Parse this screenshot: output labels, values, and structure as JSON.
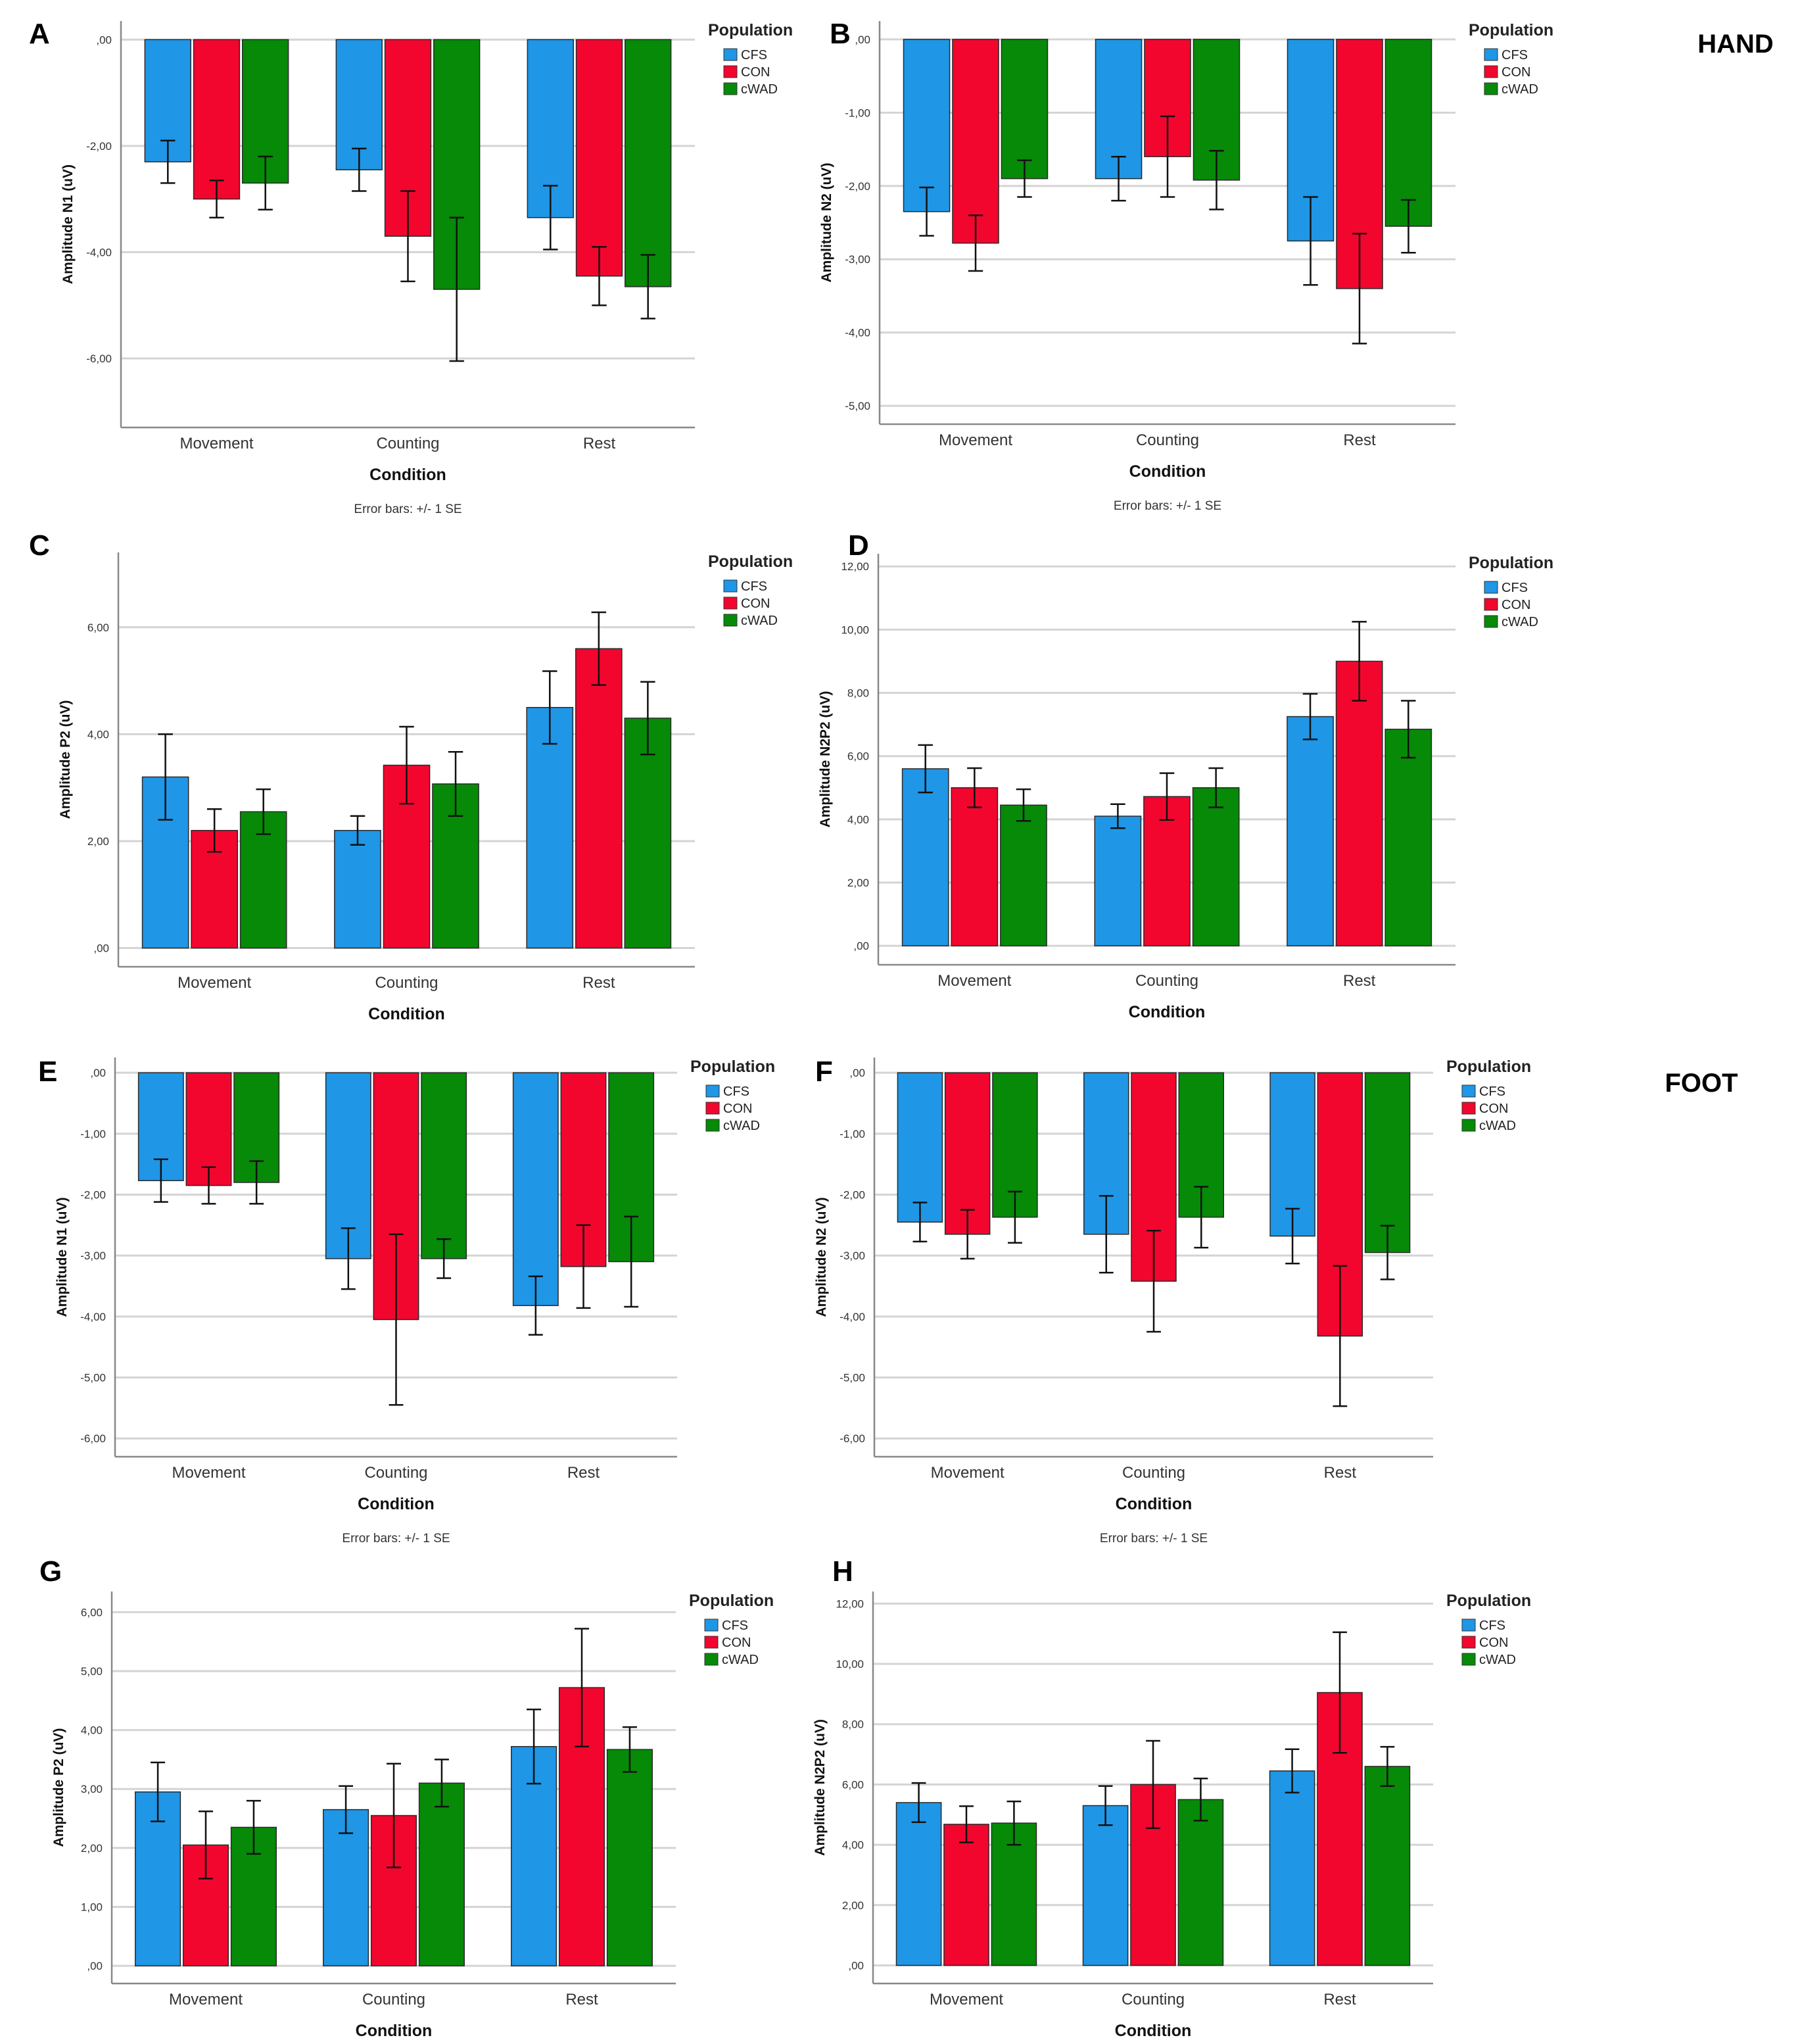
{
  "sections": {
    "hand": "HAND",
    "foot": "FOOT"
  },
  "colors": {
    "CFS": "#1f96e6",
    "CON": "#f2062e",
    "cWAD": "#068a08"
  },
  "chart_data": [
    {
      "id": "A",
      "panel_label": "A",
      "type": "bar",
      "ylabel": "Amplitude N1 (uV)",
      "xlabel": "Condition",
      "categories": [
        "Movement",
        "Counting",
        "Rest"
      ],
      "ylim": [
        -7.3,
        0.35
      ],
      "ticks": [
        ",00",
        "-2,00",
        "-4,00",
        "-6,00"
      ],
      "tick_values": [
        0,
        -2,
        -4,
        -6
      ],
      "legend_title": "Population",
      "series": [
        {
          "name": "CFS",
          "values": [
            -2.3,
            -2.45,
            -3.35
          ],
          "se": [
            0.4,
            0.4,
            0.6
          ]
        },
        {
          "name": "CON",
          "values": [
            -3.0,
            -3.7,
            -4.45
          ],
          "se": [
            0.35,
            0.85,
            0.55
          ]
        },
        {
          "name": "cWAD",
          "values": [
            -2.7,
            -4.7,
            -4.65
          ],
          "se": [
            0.5,
            1.35,
            0.6
          ]
        }
      ],
      "footnote": "Error bars: +/- 1 SE"
    },
    {
      "id": "B",
      "panel_label": "B",
      "type": "bar",
      "ylabel": "Amplitude N2 (uV)",
      "xlabel": "Condition",
      "categories": [
        "Movement",
        "Counting",
        "Rest"
      ],
      "ylim": [
        -5.25,
        0.25
      ],
      "ticks": [
        ",00",
        "-1,00",
        "-2,00",
        "-3,00",
        "-4,00",
        "-5,00"
      ],
      "tick_values": [
        0,
        -1,
        -2,
        -3,
        -4,
        -5
      ],
      "legend_title": "Population",
      "series": [
        {
          "name": "CFS",
          "values": [
            -2.35,
            -1.9,
            -2.75
          ],
          "se": [
            0.33,
            0.3,
            0.6
          ]
        },
        {
          "name": "CON",
          "values": [
            -2.78,
            -1.6,
            -3.4
          ],
          "se": [
            0.38,
            0.55,
            0.75
          ]
        },
        {
          "name": "cWAD",
          "values": [
            -1.9,
            -1.92,
            -2.55
          ],
          "se": [
            0.25,
            0.4,
            0.36
          ]
        }
      ],
      "footnote": "Error bars: +/- 1 SE"
    },
    {
      "id": "C",
      "panel_label": "C",
      "type": "bar",
      "ylabel": "Amplitude P2 (uV)",
      "xlabel": "Condition",
      "categories": [
        "Movement",
        "Counting",
        "Rest"
      ],
      "ylim": [
        -0.35,
        7.4
      ],
      "ticks": [
        ",00",
        "2,00",
        "4,00",
        "6,00"
      ],
      "tick_values": [
        0,
        2,
        4,
        6
      ],
      "legend_title": "Population",
      "series": [
        {
          "name": "CFS",
          "values": [
            3.2,
            2.2,
            4.5
          ],
          "se": [
            0.8,
            0.27,
            0.68
          ]
        },
        {
          "name": "CON",
          "values": [
            2.2,
            3.42,
            5.6
          ],
          "se": [
            0.4,
            0.72,
            0.68
          ]
        },
        {
          "name": "cWAD",
          "values": [
            2.55,
            3.07,
            4.3
          ],
          "se": [
            0.42,
            0.6,
            0.68
          ]
        }
      ],
      "footnote": ""
    },
    {
      "id": "D",
      "panel_label": "D",
      "type": "bar",
      "ylabel": "Amplitude N2P2 (uV)",
      "xlabel": "Condition",
      "categories": [
        "Movement",
        "Counting",
        "Rest"
      ],
      "ylim": [
        -0.6,
        12.4
      ],
      "ticks": [
        ",00",
        "2,00",
        "4,00",
        "6,00",
        "8,00",
        "10,00",
        "12,00"
      ],
      "tick_values": [
        0,
        2,
        4,
        6,
        8,
        10,
        12
      ],
      "legend_title": "Population",
      "series": [
        {
          "name": "CFS",
          "values": [
            5.6,
            4.1,
            7.25
          ],
          "se": [
            0.75,
            0.38,
            0.72
          ]
        },
        {
          "name": "CON",
          "values": [
            5.0,
            4.72,
            9.0
          ],
          "se": [
            0.62,
            0.74,
            1.25
          ]
        },
        {
          "name": "cWAD",
          "values": [
            4.45,
            5.0,
            6.85
          ],
          "se": [
            0.5,
            0.62,
            0.9
          ]
        }
      ],
      "footnote": ""
    },
    {
      "id": "E",
      "panel_label": "E",
      "type": "bar",
      "ylabel": "Amplitude N1 (uV)",
      "xlabel": "Condition",
      "categories": [
        "Movement",
        "Counting",
        "Rest"
      ],
      "ylim": [
        -6.3,
        0.25
      ],
      "ticks": [
        ",00",
        "-1,00",
        "-2,00",
        "-3,00",
        "-4,00",
        "-5,00",
        "-6,00"
      ],
      "tick_values": [
        0,
        -1,
        -2,
        -3,
        -4,
        -5,
        -6
      ],
      "legend_title": "Population",
      "series": [
        {
          "name": "CFS",
          "values": [
            -1.77,
            -3.05,
            -3.82
          ],
          "se": [
            0.35,
            0.5,
            0.48
          ]
        },
        {
          "name": "CON",
          "values": [
            -1.85,
            -4.05,
            -3.18
          ],
          "se": [
            0.3,
            1.4,
            0.68
          ]
        },
        {
          "name": "cWAD",
          "values": [
            -1.8,
            -3.05,
            -3.1
          ],
          "se": [
            0.35,
            0.32,
            0.74
          ]
        }
      ],
      "footnote": "Error bars: +/- 1 SE"
    },
    {
      "id": "F",
      "panel_label": "F",
      "type": "bar",
      "ylabel": "Amplitude N2 (uV)",
      "xlabel": "Condition",
      "categories": [
        "Movement",
        "Counting",
        "Rest"
      ],
      "ylim": [
        -6.3,
        0.25
      ],
      "ticks": [
        ",00",
        "-1,00",
        "-2,00",
        "-3,00",
        "-4,00",
        "-5,00",
        "-6,00"
      ],
      "tick_values": [
        0,
        -1,
        -2,
        -3,
        -4,
        -5,
        -6
      ],
      "legend_title": "Population",
      "series": [
        {
          "name": "CFS",
          "values": [
            -2.45,
            -2.65,
            -2.68
          ],
          "se": [
            0.32,
            0.63,
            0.45
          ]
        },
        {
          "name": "CON",
          "values": [
            -2.65,
            -3.42,
            -4.32
          ],
          "se": [
            0.4,
            0.83,
            1.15
          ]
        },
        {
          "name": "cWAD",
          "values": [
            -2.37,
            -2.37,
            -2.95
          ],
          "se": [
            0.42,
            0.5,
            0.44
          ]
        }
      ],
      "footnote": "Error bars: +/- 1 SE"
    },
    {
      "id": "G",
      "panel_label": "G",
      "type": "bar",
      "ylabel": "Amplitude P2 (uV)",
      "xlabel": "Condition",
      "categories": [
        "Movement",
        "Counting",
        "Rest"
      ],
      "ylim": [
        -0.3,
        6.35
      ],
      "ticks": [
        ",00",
        "1,00",
        "2,00",
        "3,00",
        "4,00",
        "5,00",
        "6,00"
      ],
      "tick_values": [
        0,
        1,
        2,
        3,
        4,
        5,
        6
      ],
      "legend_title": "Population",
      "series": [
        {
          "name": "CFS",
          "values": [
            2.95,
            2.65,
            3.72
          ],
          "se": [
            0.5,
            0.4,
            0.63
          ]
        },
        {
          "name": "CON",
          "values": [
            2.05,
            2.55,
            4.72
          ],
          "se": [
            0.57,
            0.88,
            1.0
          ]
        },
        {
          "name": "cWAD",
          "values": [
            2.35,
            3.1,
            3.67
          ],
          "se": [
            0.45,
            0.4,
            0.38
          ]
        }
      ],
      "footnote": ""
    },
    {
      "id": "H",
      "panel_label": "H",
      "type": "bar",
      "ylabel": "Amplitude N2P2 (uV)",
      "xlabel": "Condition",
      "categories": [
        "Movement",
        "Counting",
        "Rest"
      ],
      "ylim": [
        -0.6,
        12.4
      ],
      "ticks": [
        ",00",
        "2,00",
        "4,00",
        "6,00",
        "8,00",
        "10,00",
        "12,00"
      ],
      "tick_values": [
        0,
        2,
        4,
        6,
        8,
        10,
        12
      ],
      "legend_title": "Population",
      "series": [
        {
          "name": "CFS",
          "values": [
            5.4,
            5.3,
            6.45
          ],
          "se": [
            0.65,
            0.65,
            0.72
          ]
        },
        {
          "name": "CON",
          "values": [
            4.68,
            6.0,
            9.05
          ],
          "se": [
            0.6,
            1.45,
            2.0
          ]
        },
        {
          "name": "cWAD",
          "values": [
            4.72,
            5.5,
            6.6
          ],
          "se": [
            0.72,
            0.7,
            0.65
          ]
        }
      ],
      "footnote": ""
    }
  ]
}
